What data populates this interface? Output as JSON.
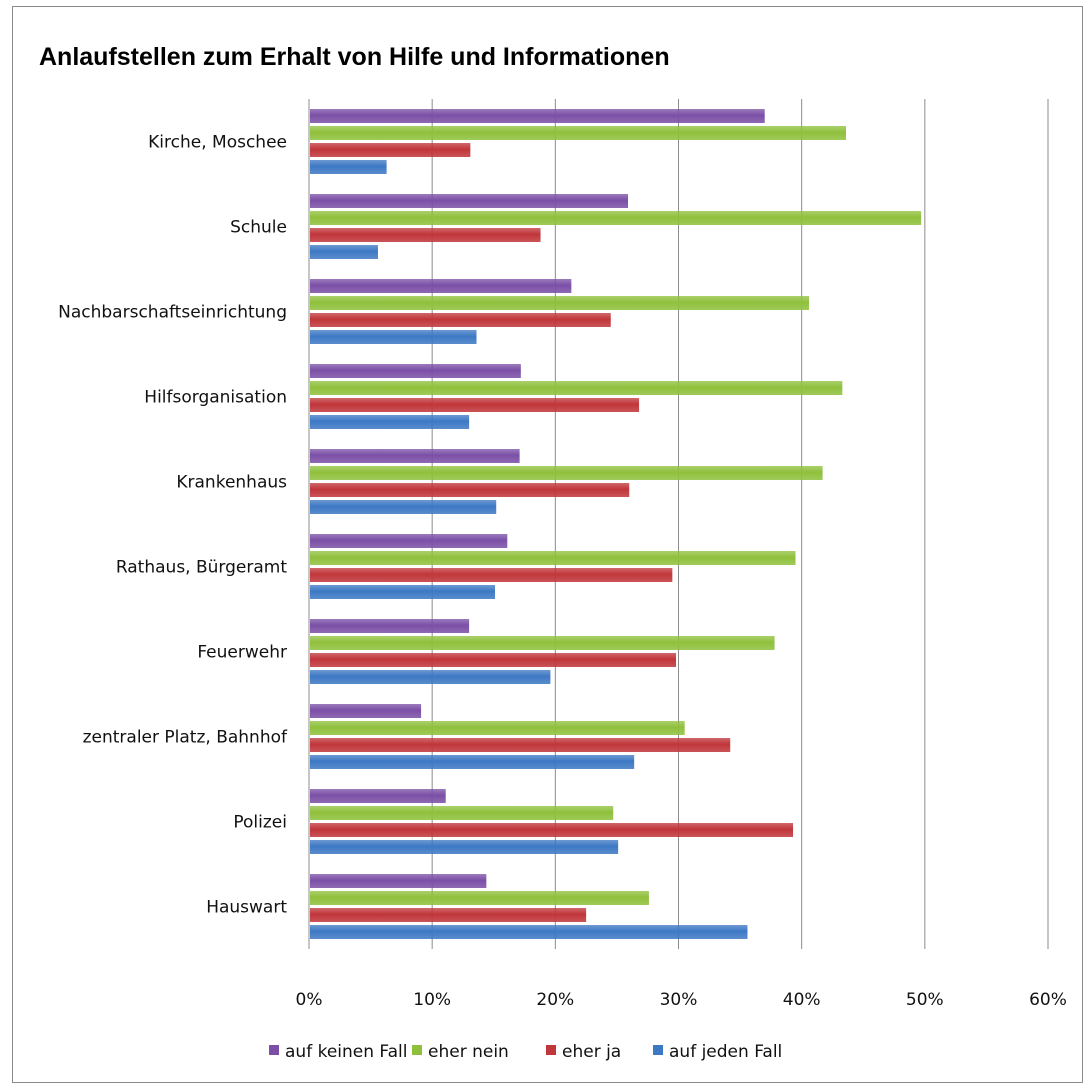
{
  "chart_data": {
    "type": "bar",
    "orientation": "horizontal",
    "title": "Anlaufstellen zum Erhalt von Hilfe und Informationen",
    "categories": [
      "Kirche, Moschee",
      "Schule",
      "Nachbarschaftseinrichtung",
      "Hilfsorganisation",
      "Krankenhaus",
      "Rathaus, Bürgeramt",
      "Feuerwehr",
      "zentraler Platz, Bahnhof",
      "Polizei",
      "Hauswart"
    ],
    "series": [
      {
        "name": "auf keinen Fall",
        "color": "#7b4fa6",
        "values": [
          37.0,
          25.9,
          21.3,
          17.2,
          17.1,
          16.1,
          13.0,
          9.1,
          11.1,
          14.4
        ]
      },
      {
        "name": "eher nein",
        "color": "#8fc03c",
        "values": [
          43.6,
          49.7,
          40.6,
          43.3,
          41.7,
          39.5,
          37.8,
          30.5,
          24.7,
          27.6
        ]
      },
      {
        "name": "eher ja",
        "color": "#c0363a",
        "values": [
          13.1,
          18.8,
          24.5,
          26.8,
          26.0,
          29.5,
          29.8,
          34.2,
          39.3,
          22.5
        ]
      },
      {
        "name": "auf jeden Fall",
        "color": "#3d78c4",
        "values": [
          6.3,
          5.6,
          13.6,
          13.0,
          15.2,
          15.1,
          19.6,
          26.4,
          25.1,
          35.6
        ]
      }
    ],
    "xlim": [
      0,
      60
    ],
    "xticks": [
      "0%",
      "10%",
      "20%",
      "30%",
      "40%",
      "50%",
      "60%"
    ],
    "grid": true,
    "legend": "bottom"
  }
}
